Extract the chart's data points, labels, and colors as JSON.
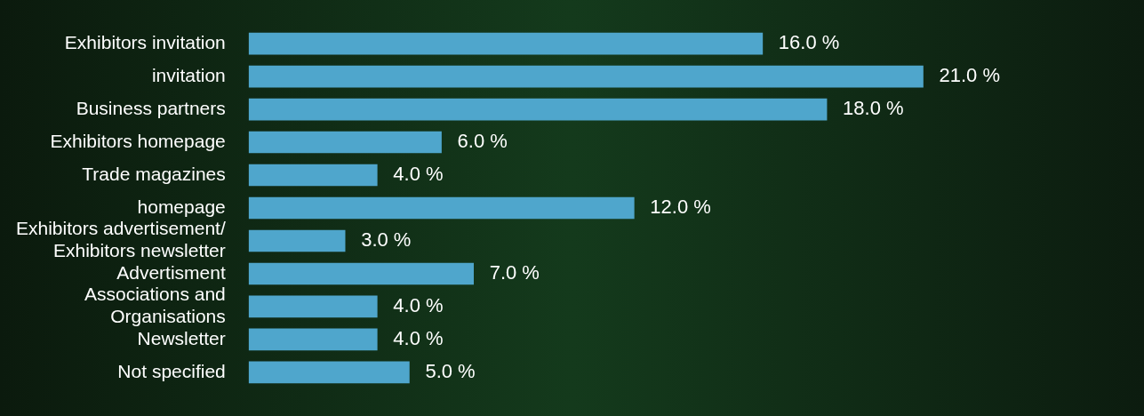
{
  "chart_data": {
    "type": "bar",
    "orientation": "horizontal",
    "categories": [
      "Exhibitors invitation",
      "invitation",
      "Business partners",
      "Exhibitors homepage",
      "Trade magazines",
      "homepage",
      "Exhibitors advertisement/\nExhibitors newsletter",
      "Advertisment",
      "Associations and\nOrganisations",
      "Newsletter",
      "Not specified"
    ],
    "values": [
      16,
      21,
      18,
      6,
      4,
      12,
      3,
      7,
      4,
      4,
      5
    ],
    "value_labels": [
      "16.0 %",
      "21.0 %",
      "18.0 %",
      "6.0 %",
      "4.0 %",
      "12.0 %",
      "3.0 %",
      "7.0 %",
      "4.0 %",
      "4.0 %",
      "5.0 %"
    ],
    "color": "#4fa6cc"
  }
}
